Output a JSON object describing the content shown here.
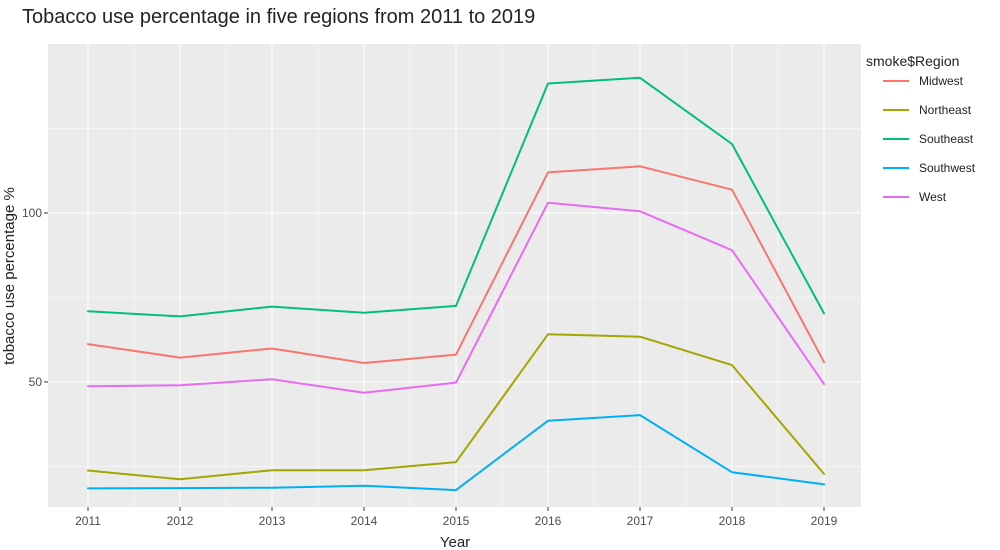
{
  "chart_data": {
    "type": "line",
    "title": "Tobacco use percentage in five regions from 2011 to 2019",
    "xlabel": "Year",
    "ylabel": "tobacco use percentage %",
    "x": [
      "2011",
      "2012",
      "2013",
      "2014",
      "2015",
      "2016",
      "2017",
      "2018",
      "2019"
    ],
    "ylim": [
      13,
      150
    ],
    "y_ticks": [
      50,
      100
    ],
    "y_tick_labels": [
      "50",
      "100"
    ],
    "grid": true,
    "legend": {
      "title": "smoke$Region",
      "position": "right"
    },
    "series": [
      {
        "name": "Midwest",
        "color": "#F8766D",
        "values": [
          61.2,
          57.2,
          59.9,
          55.6,
          58.1,
          112.0,
          113.8,
          106.9,
          55.9
        ]
      },
      {
        "name": "Northeast",
        "color": "#A3A500",
        "values": [
          23.8,
          21.2,
          23.9,
          23.9,
          26.3,
          64.1,
          63.4,
          55.0,
          22.8
        ]
      },
      {
        "name": "Southeast",
        "color": "#00BF7D",
        "values": [
          70.9,
          69.4,
          72.3,
          70.5,
          72.5,
          138.3,
          140.0,
          120.4,
          70.3
        ]
      },
      {
        "name": "Southwest",
        "color": "#00B0F6",
        "values": [
          18.5,
          18.6,
          18.7,
          19.3,
          18.0,
          38.5,
          40.2,
          23.3,
          19.7
        ]
      },
      {
        "name": "West",
        "color": "#E76BF3",
        "values": [
          48.7,
          49.0,
          50.8,
          46.8,
          49.8,
          103.0,
          100.5,
          89.0,
          49.4
        ]
      }
    ]
  }
}
